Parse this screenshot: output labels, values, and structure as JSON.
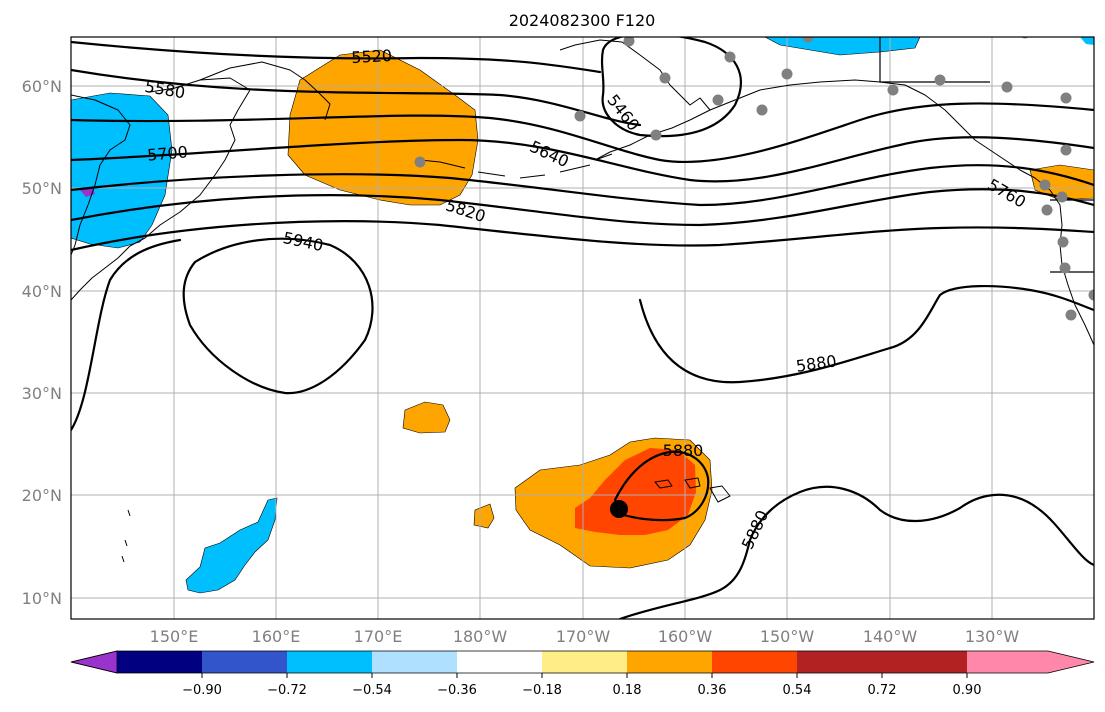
{
  "title": "2024082300 F120",
  "lat_labels": [
    "60°N",
    "50°N",
    "40°N",
    "30°N",
    "20°N",
    "10°N"
  ],
  "lon_labels": [
    "150°E",
    "160°E",
    "170°E",
    "180°W",
    "170°W",
    "160°W",
    "150°W",
    "140°W",
    "130°W"
  ],
  "contour_labels": [
    "5520",
    "5580",
    "5460",
    "5700",
    "5640",
    "5760",
    "5820",
    "5940",
    "5880",
    "5880",
    "5880"
  ],
  "colorbar": {
    "colors": [
      "#9933cc",
      "#000080",
      "#3355cc",
      "#00bfff",
      "#b0e0ff",
      "#ffffff",
      "#ffee88",
      "#ffa500",
      "#ff4500",
      "#b22222",
      "#ff88aa"
    ],
    "tick_labels": [
      "−0.90",
      "−0.72",
      "−0.54",
      "−0.36",
      "−0.18",
      "0.18",
      "0.36",
      "0.54",
      "0.72",
      "0.90"
    ]
  },
  "station_marker_color": "#808080",
  "storm_marker_color": "#000000"
}
